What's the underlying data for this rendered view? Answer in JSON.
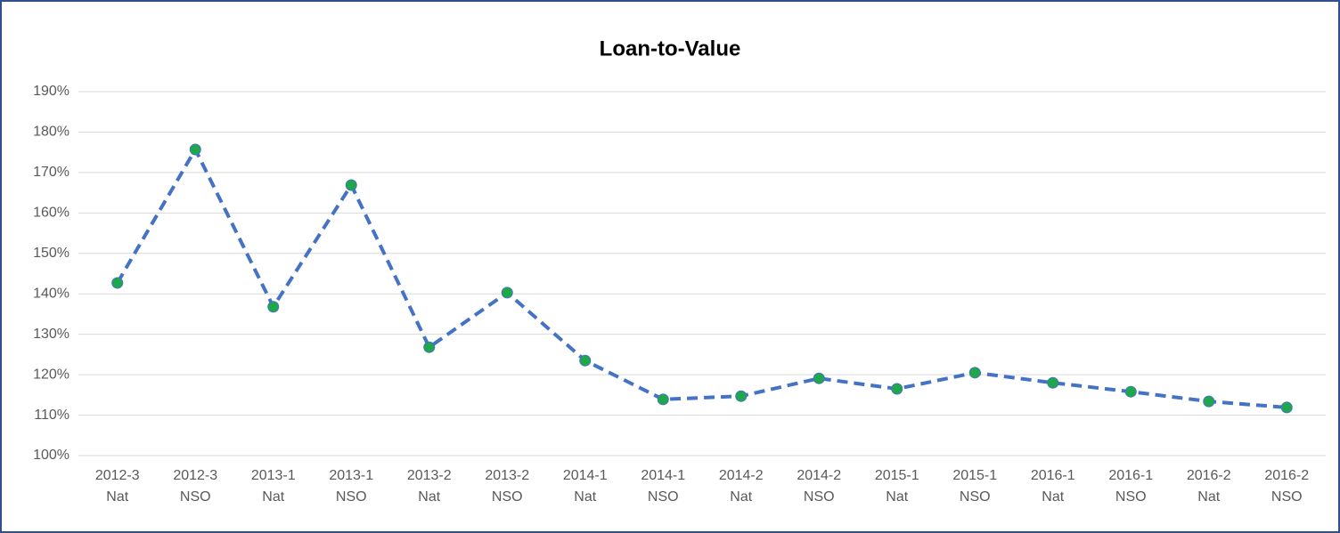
{
  "chart_data": {
    "type": "line",
    "title": "Loan-to-Value",
    "categories": [
      [
        "2012-3",
        "Nat"
      ],
      [
        "2012-3",
        "NSO"
      ],
      [
        "2013-1",
        "Nat"
      ],
      [
        "2013-1",
        "NSO"
      ],
      [
        "2013-2",
        "Nat"
      ],
      [
        "2013-2",
        "NSO"
      ],
      [
        "2014-1",
        "Nat"
      ],
      [
        "2014-1",
        "NSO"
      ],
      [
        "2014-2",
        "Nat"
      ],
      [
        "2014-2",
        "NSO"
      ],
      [
        "2015-1",
        "Nat"
      ],
      [
        "2015-1",
        "NSO"
      ],
      [
        "2016-1",
        "Nat"
      ],
      [
        "2016-1",
        "NSO"
      ],
      [
        "2016-2",
        "Nat"
      ],
      [
        "2016-2",
        "NSO"
      ]
    ],
    "values": [
      142.7,
      175.7,
      136.8,
      166.9,
      126.8,
      140.3,
      123.5,
      113.9,
      114.7,
      119.1,
      116.5,
      120.5,
      118,
      115.8,
      113.4,
      111.9
    ],
    "color": "#4472c4",
    "marker_color": "#1fa84a",
    "ylim": [
      100,
      190
    ],
    "yticks": [
      {
        "value": 100,
        "label": "100%"
      },
      {
        "value": 110,
        "label": "110%"
      },
      {
        "value": 120,
        "label": "120%"
      },
      {
        "value": 130,
        "label": "130%"
      },
      {
        "value": 140,
        "label": "140%"
      },
      {
        "value": 150,
        "label": "150%"
      },
      {
        "value": 160,
        "label": "160%"
      },
      {
        "value": 170,
        "label": "170%"
      },
      {
        "value": 180,
        "label": "180%"
      },
      {
        "value": 190,
        "label": "190%"
      }
    ],
    "grid": true
  }
}
